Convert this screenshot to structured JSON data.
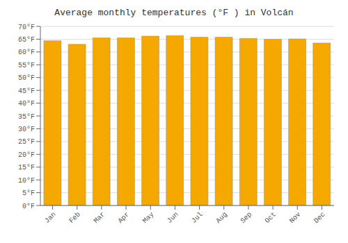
{
  "chart_data": {
    "type": "bar",
    "title": "Average monthly temperatures (°F ) in Volcán",
    "categories": [
      "Jan",
      "Feb",
      "Mar",
      "Apr",
      "May",
      "Jun",
      "Jul",
      "Aug",
      "Sep",
      "Oct",
      "Nov",
      "Dec"
    ],
    "values": [
      64.4,
      63.0,
      65.5,
      65.5,
      66.2,
      66.4,
      65.8,
      65.8,
      65.3,
      65.0,
      65.1,
      63.5
    ],
    "color": "#F5A800",
    "ylim": [
      0,
      70
    ],
    "yticks": [
      {
        "value": 0,
        "label": "0°F"
      },
      {
        "value": 5,
        "label": "5°F"
      },
      {
        "value": 10,
        "label": "10°F"
      },
      {
        "value": 15,
        "label": "15°F"
      },
      {
        "value": 20,
        "label": "20°F"
      },
      {
        "value": 25,
        "label": "25°F"
      },
      {
        "value": 30,
        "label": "30°F"
      },
      {
        "value": 35,
        "label": "35°F"
      },
      {
        "value": 40,
        "label": "40°F"
      },
      {
        "value": 45,
        "label": "45°F"
      },
      {
        "value": 50,
        "label": "50°F"
      },
      {
        "value": 55,
        "label": "55°F"
      },
      {
        "value": 60,
        "label": "60°F"
      },
      {
        "value": 65,
        "label": "65°F"
      },
      {
        "value": 70,
        "label": "70°F"
      }
    ],
    "grid": true
  }
}
